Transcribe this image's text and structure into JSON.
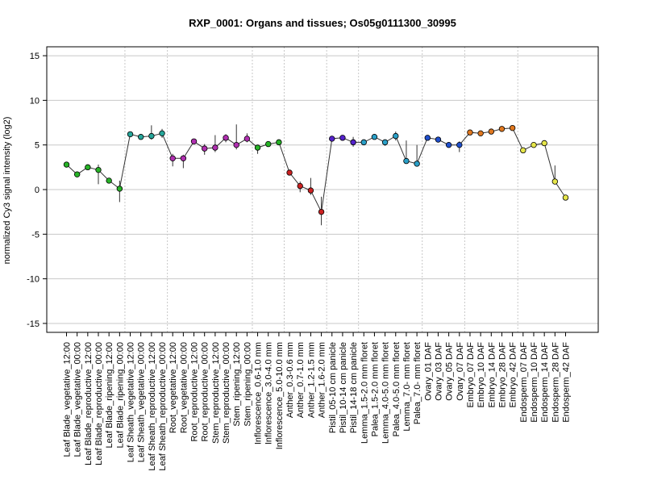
{
  "chart_data": {
    "type": "line",
    "title": "RXP_0001: Organs and tissues; Os05g0111300_30995",
    "ylabel": "normalized Cy3 signal intensity (log2)",
    "xlabel": "",
    "ylim": [
      -16,
      16
    ],
    "yticks": [
      -15,
      -10,
      -5,
      0,
      5,
      10,
      15
    ],
    "grid": true,
    "categories": [
      "Leaf Blade_vegetative_12:00",
      "Leaf Blade_vegetative_00:00",
      "Leaf Blade_reproductive_12:00",
      "Leaf Blade_reproductive_00:00",
      "Leaf Blade_ripening_12:00",
      "Leaf Blade_ripening_00:00",
      "Leaf Sheath_vegetative_12:00",
      "Leaf Sheath_vegetative_00:00",
      "Leaf Sheath_reproductive_12:00",
      "Leaf Sheath_reproductive_00:00",
      "Root_vegetative_12:00",
      "Root_vegetative_00:00",
      "Root_reproductive_12:00",
      "Root_reproductive_00:00",
      "Stem_reproductive_12:00",
      "Stem_reproductive_00:00",
      "Stem_ripening_12:00",
      "Stem_ripening_00:00",
      "Inflorescence_0.6-1.0 mm",
      "Inflorescence_3.0-4.0 mm",
      "Inflorescence_5.0-10.0 mm",
      "Anther_0.3-0.6 mm",
      "Anther_0.7-1.0 mm",
      "Anther_1.2-1.5 mm",
      "Anther_1.6-2.0 mm",
      "Pistil_05-10 cm panicle",
      "Pistil_10-14 cm panicle",
      "Pistil_14-18 cm panicle",
      "Lemma_1.5-2.0 mm floret",
      "Palea_1.5-2.0 mm floret",
      "Lemma_4.0-5.0 mm floret",
      "Palea_4.0-5.0 mm floret",
      "Lemma_7.0- mm floret",
      "Palea_7.0- mm floret",
      "Ovary_01 DAF",
      "Ovary_03 DAF",
      "Ovary_05 DAF",
      "Ovary_07 DAF",
      "Embryo_07 DAF",
      "Embryo_10 DAF",
      "Embryo_14 DAF",
      "Embryo_28 DAF",
      "Embryo_42 DAF",
      "Endosperm_07 DAF",
      "Endosperm_10 DAF",
      "Endosperm_14 DAF",
      "Endosperm_28 DAF",
      "Endosperm_42 DAF"
    ],
    "values": [
      2.8,
      1.7,
      2.5,
      2.2,
      1.0,
      0.1,
      6.2,
      5.9,
      6.0,
      6.3,
      3.5,
      3.5,
      5.4,
      4.6,
      4.7,
      5.8,
      5.0,
      5.7,
      4.7,
      5.1,
      5.3,
      1.9,
      0.4,
      -0.1,
      -2.5,
      5.7,
      5.8,
      5.3,
      5.3,
      5.9,
      5.3,
      6.0,
      3.2,
      2.9,
      5.8,
      5.6,
      5.0,
      5.0,
      6.4,
      6.3,
      6.5,
      6.8,
      6.9,
      4.4,
      5.0,
      5.2,
      0.9,
      -0.9
    ],
    "error_bars": [
      [
        2.8,
        2.8
      ],
      [
        1.4,
        2.0
      ],
      [
        2.3,
        2.7
      ],
      [
        0.6,
        2.8
      ],
      [
        0.8,
        1.2
      ],
      [
        -1.4,
        1.0
      ],
      [
        6.2,
        6.2
      ],
      [
        5.6,
        6.1
      ],
      [
        5.6,
        7.2
      ],
      [
        5.8,
        6.8
      ],
      [
        2.6,
        4.0
      ],
      [
        2.4,
        3.9
      ],
      [
        5.2,
        5.6
      ],
      [
        3.9,
        5.1
      ],
      [
        4.2,
        6.1
      ],
      [
        5.3,
        6.2
      ],
      [
        4.5,
        7.3
      ],
      [
        5.3,
        6.3
      ],
      [
        4.0,
        5.0
      ],
      [
        5.0,
        5.2
      ],
      [
        5.3,
        5.3
      ],
      [
        1.6,
        2.2
      ],
      [
        -0.3,
        0.9
      ],
      [
        -0.6,
        1.3
      ],
      [
        -4.0,
        -0.8
      ],
      [
        5.5,
        5.9
      ],
      [
        5.7,
        5.9
      ],
      [
        4.8,
        5.9
      ],
      [
        5.1,
        5.5
      ],
      [
        5.9,
        5.9
      ],
      [
        4.9,
        5.6
      ],
      [
        5.5,
        6.5
      ],
      [
        3.1,
        5.5
      ],
      [
        2.7,
        5.0
      ],
      [
        5.8,
        5.8
      ],
      [
        5.3,
        5.9
      ],
      [
        4.9,
        5.1
      ],
      [
        4.2,
        5.4
      ],
      [
        6.3,
        6.5
      ],
      [
        6.2,
        6.4
      ],
      [
        6.4,
        6.6
      ],
      [
        6.7,
        6.9
      ],
      [
        6.9,
        6.9
      ],
      [
        4.2,
        4.6
      ],
      [
        5.0,
        5.0
      ],
      [
        5.0,
        5.4
      ],
      [
        0.6,
        2.7
      ],
      [
        -0.9,
        -0.9
      ]
    ],
    "colors": [
      "#27b327",
      "#27b327",
      "#27b327",
      "#27b327",
      "#27b327",
      "#27b327",
      "#26a69a",
      "#26a69a",
      "#26a69a",
      "#26a69a",
      "#b02fb0",
      "#b02fb0",
      "#b02fb0",
      "#b02fb0",
      "#b02fb0",
      "#b02fb0",
      "#b02fb0",
      "#b02fb0",
      "#27b327",
      "#27b327",
      "#27b327",
      "#cc2222",
      "#cc2222",
      "#cc2222",
      "#cc2222",
      "#5522cc",
      "#5522cc",
      "#5522cc",
      "#2aa0c8",
      "#2aa0c8",
      "#2aa0c8",
      "#2aa0c8",
      "#2aa0c8",
      "#2aa0c8",
      "#1f4fcc",
      "#1f4fcc",
      "#1f4fcc",
      "#1f4fcc",
      "#e07820",
      "#e07820",
      "#e07820",
      "#e07820",
      "#e07820",
      "#e6e64a",
      "#e6e64a",
      "#e6e64a",
      "#e6e64a",
      "#e6e64a"
    ]
  }
}
